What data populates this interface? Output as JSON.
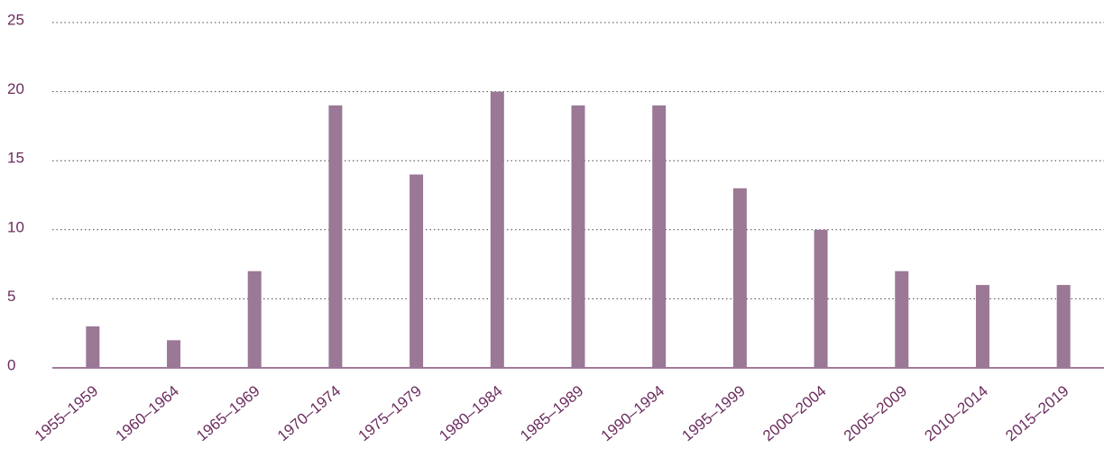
{
  "chart_data": {
    "type": "bar",
    "categories": [
      "1955–1959",
      "1960–1964",
      "1965–1969",
      "1970–1974",
      "1975–1979",
      "1980–1984",
      "1985–1989",
      "1990–1994",
      "1995–1999",
      "2000–2004",
      "2005–2009",
      "2010–2014",
      "2015–2019"
    ],
    "values": [
      3,
      2,
      7,
      19,
      14,
      20,
      19,
      19,
      13,
      10,
      7,
      6,
      6
    ],
    "color": "#9b7896",
    "ylim": [
      0,
      25
    ],
    "yticks": [
      0,
      5,
      10,
      15,
      20,
      25
    ],
    "grid": true
  }
}
